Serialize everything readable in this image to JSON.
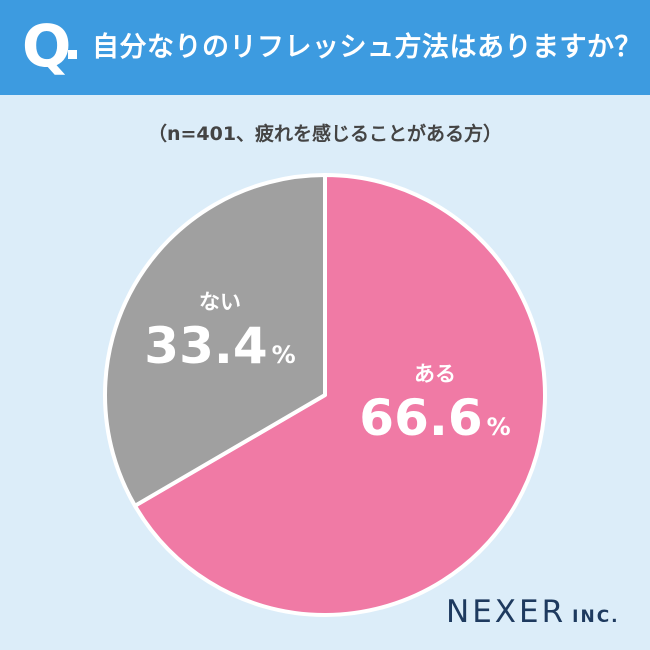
{
  "header": {
    "q_mark": "Q",
    "question": "自分なりのリフレッシュ方法はありますか？"
  },
  "subtitle": "（n=401、疲れを感じることがある方）",
  "colors": {
    "header_bg": "#3d9be0",
    "background": "#dcedf9",
    "yes": "#f07aa5",
    "no": "#a0a0a0"
  },
  "chart_data": {
    "type": "pie",
    "categories": [
      "ある",
      "ない"
    ],
    "values": [
      66.6,
      33.4
    ],
    "unit": "%",
    "start": "12 o'clock",
    "direction": "clockwise"
  },
  "labels": {
    "yes": {
      "category": "ある",
      "value": "66.6",
      "unit": "%"
    },
    "no": {
      "category": "ない",
      "value": "33.4",
      "unit": "%"
    }
  },
  "logo": {
    "main": "NEXER",
    "suffix": "INC."
  }
}
